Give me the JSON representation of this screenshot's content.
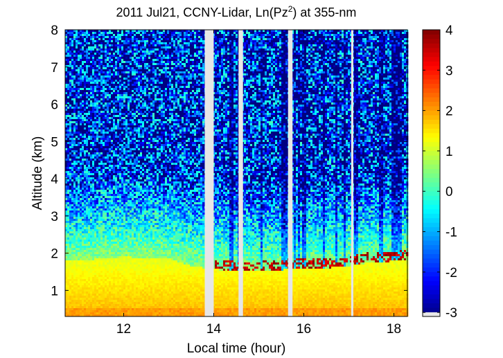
{
  "chart_data": {
    "type": "heatmap",
    "title_main": "2011 Jul21, CCNY-Lidar, Ln(Pz",
    "title_sup": "2",
    "title_tail": ") at 355-nm",
    "xlabel": "Local time (hour)",
    "ylabel": "Altitude (km)",
    "xlim": [
      10.7,
      18.3
    ],
    "ylim": [
      0.3,
      8
    ],
    "xticks": [
      12,
      14,
      16,
      18
    ],
    "yticks": [
      1,
      2,
      3,
      4,
      5,
      6,
      7,
      8
    ],
    "colorbar": {
      "clim": [
        -3.1,
        4
      ],
      "ticks": [
        -3,
        -2,
        -1,
        0,
        1,
        2,
        3,
        4
      ],
      "colormap": "jet"
    },
    "data_gaps_hours": [
      [
        13.8,
        14.0
      ],
      [
        14.55,
        14.65
      ],
      [
        15.65,
        15.75
      ],
      [
        17.05,
        17.1
      ]
    ],
    "boundary_layer_top_km": [
      {
        "time": 11.0,
        "top": 1.95
      },
      {
        "time": 12.0,
        "top": 2.05
      },
      {
        "time": 13.0,
        "top": 2.0
      },
      {
        "time": 13.5,
        "top": 1.8
      },
      {
        "time": 14.5,
        "top": 1.65
      },
      {
        "time": 15.0,
        "top": 1.65
      },
      {
        "time": 15.5,
        "top": 1.7
      },
      {
        "time": 16.0,
        "top": 1.75
      },
      {
        "time": 16.5,
        "top": 1.75
      },
      {
        "time": 17.0,
        "top": 1.8
      },
      {
        "time": 17.5,
        "top": 1.9
      },
      {
        "time": 18.2,
        "top": 1.95
      }
    ],
    "cloud_layer_km": [
      1.6,
      2.0
    ],
    "grid": false
  },
  "colors": {
    "gap": "#e6e6e6",
    "axis": "#000000"
  }
}
